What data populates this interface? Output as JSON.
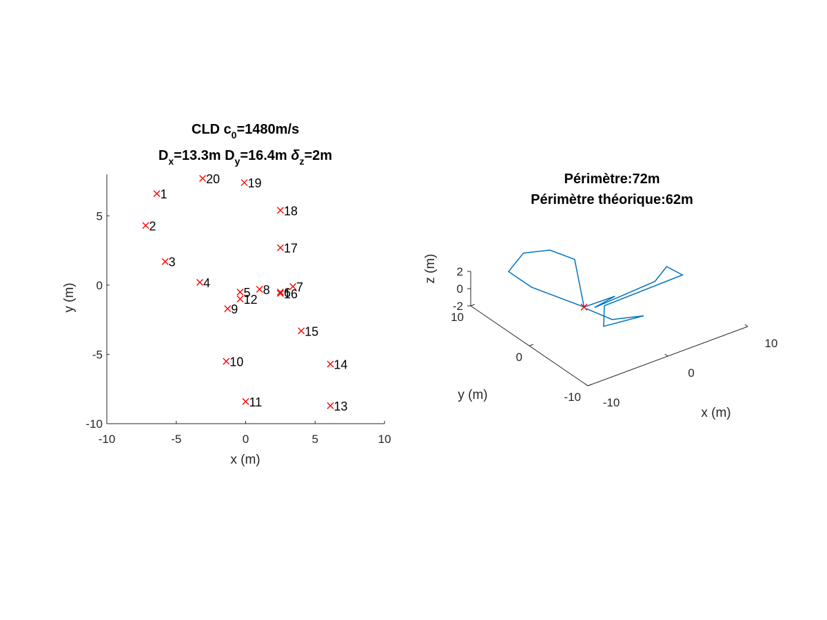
{
  "chart_data": [
    {
      "type": "scatter",
      "title_line1": {
        "base1": "CLD c",
        "sub1": "0",
        "base2": "=1480m/s"
      },
      "title_line2": {
        "base1": "D",
        "sub1": "x",
        "base2": "=13.3m D",
        "sub2": "y",
        "base3": "=16.4m ",
        "greek": "δ",
        "sub3": "z",
        "base4": "=2m"
      },
      "xlabel": "x (m)",
      "ylabel": "y (m)",
      "xlim": [
        -10,
        10
      ],
      "ylim": [
        -10,
        8
      ],
      "xticks": [
        -10,
        -5,
        0,
        5,
        10
      ],
      "yticks": [
        -10,
        -5,
        0,
        5
      ],
      "marker_color": "#ff0000",
      "points": [
        {
          "label": "1",
          "x": -6.4,
          "y": 6.6
        },
        {
          "label": "2",
          "x": -7.2,
          "y": 4.3
        },
        {
          "label": "3",
          "x": -5.8,
          "y": 1.7
        },
        {
          "label": "4",
          "x": -3.3,
          "y": 0.2
        },
        {
          "label": "5",
          "x": -0.4,
          "y": -0.5
        },
        {
          "label": "6",
          "x": 2.5,
          "y": -0.5
        },
        {
          "label": "7",
          "x": 3.4,
          "y": -0.1
        },
        {
          "label": "8",
          "x": 1.0,
          "y": -0.3
        },
        {
          "label": "9",
          "x": -1.3,
          "y": -1.7
        },
        {
          "label": "10",
          "x": -1.4,
          "y": -5.5
        },
        {
          "label": "11",
          "x": 0.0,
          "y": -8.4
        },
        {
          "label": "12",
          "x": -0.4,
          "y": -1.0
        },
        {
          "label": "13",
          "x": 6.1,
          "y": -8.7
        },
        {
          "label": "14",
          "x": 6.1,
          "y": -5.7
        },
        {
          "label": "15",
          "x": 4.0,
          "y": -3.3
        },
        {
          "label": "16",
          "x": 2.5,
          "y": -0.6
        },
        {
          "label": "17",
          "x": 2.5,
          "y": 2.7
        },
        {
          "label": "18",
          "x": 2.5,
          "y": 5.4
        },
        {
          "label": "19",
          "x": -0.1,
          "y": 7.4
        },
        {
          "label": "20",
          "x": -3.1,
          "y": 7.7
        }
      ]
    },
    {
      "type": "line",
      "title_line1": "Périmètre:72m",
      "title_line2": "Périmètre théorique:62m",
      "xlabel": "x (m)",
      "ylabel": "y (m)",
      "zlabel": "z (m)",
      "xlim": [
        -10,
        10
      ],
      "ylim": [
        -10,
        10
      ],
      "zlim": [
        -2,
        2
      ],
      "xticks": [
        -10,
        0,
        10
      ],
      "yticks": [
        -10,
        0,
        10
      ],
      "zticks": [
        -2,
        0,
        2
      ],
      "line_color": "#0072bd",
      "marker_color": "#ff0000",
      "marker_point": {
        "x": -3,
        "y": 0.2,
        "z": 0
      },
      "path": [
        {
          "x": -3,
          "y": 0.2,
          "z": 0
        },
        {
          "x": -4.9,
          "y": 6.6,
          "z": 0
        },
        {
          "x": -4.9,
          "y": 10.5,
          "z": 0
        },
        {
          "x": -1.5,
          "y": 12.6,
          "z": 0
        },
        {
          "x": 1.0,
          "y": 11.5,
          "z": 0
        },
        {
          "x": 1.9,
          "y": 8.5,
          "z": 0
        },
        {
          "x": -3,
          "y": 0.2,
          "z": 0
        },
        {
          "x": 0.8,
          "y": 0.1,
          "z": 0
        },
        {
          "x": -2.2,
          "y": -0.5,
          "z": 0
        },
        {
          "x": 5.8,
          "y": 0.1,
          "z": 0
        },
        {
          "x": 8.5,
          "y": 1.8,
          "z": 0
        },
        {
          "x": 8.8,
          "y": -0.5,
          "z": 0
        },
        {
          "x": -1.2,
          "y": -0.8,
          "z": 0
        },
        {
          "x": -3.7,
          "y": -4.1,
          "z": 0
        },
        {
          "x": 0.8,
          "y": -4.8,
          "z": 0
        },
        {
          "x": -2.2,
          "y": -3.5,
          "z": 0
        },
        {
          "x": -3,
          "y": -0.2,
          "z": 0
        }
      ]
    }
  ]
}
